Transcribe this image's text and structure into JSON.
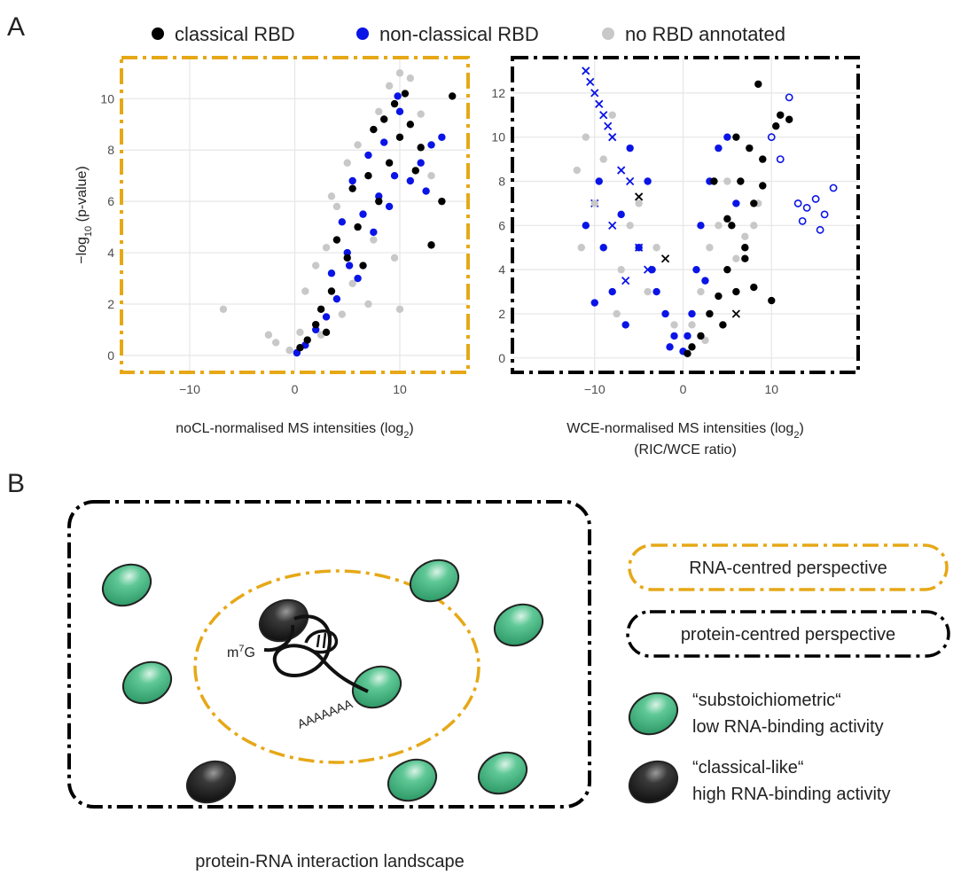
{
  "panel_labels": [
    "A",
    "B"
  ],
  "chart_data": [
    {
      "type": "scatter",
      "frame_color": "#e6a817",
      "grid": true,
      "xlim": [
        -16.5,
        16.5
      ],
      "ylim": [
        -0.66,
        11.6
      ],
      "xticks": [
        {
          "value": -10,
          "label": "−10"
        },
        0,
        10
      ],
      "yticks": [
        0,
        2,
        4,
        6,
        8,
        10
      ],
      "x_label": [
        "noCL-normalised MS intensities (log",
        "2",
        ")"
      ],
      "y_label": [
        "−log",
        "10",
        " (p-value)"
      ],
      "series": [
        {
          "name": "classical RBD",
          "color": "#000000",
          "marker": "dot",
          "x": [
            0.5,
            1.2,
            2,
            2.5,
            3.5,
            4,
            5,
            5.5,
            6,
            7,
            7.5,
            8,
            8.5,
            9,
            9.5,
            10,
            10.5,
            11,
            12,
            13,
            14,
            15,
            11.5,
            6.5,
            3
          ],
          "values": [
            0.3,
            0.6,
            1.2,
            1.8,
            2.5,
            4.5,
            3.8,
            6.5,
            5,
            7,
            8.8,
            6,
            9.2,
            7.5,
            9.8,
            8.5,
            10.2,
            9,
            8.1,
            4.3,
            6.0,
            10.1,
            7.2,
            3.5,
            0.9
          ]
        },
        {
          "name": "non-classical RBD",
          "color": "#0a14e6",
          "marker": "dot",
          "x": [
            0.2,
            1,
            2,
            3,
            3.5,
            4,
            4.5,
            5,
            5.5,
            6,
            6.5,
            7,
            7.5,
            8,
            8.5,
            9,
            9.5,
            10,
            11,
            12,
            13,
            14,
            5.2,
            9.8,
            12.5
          ],
          "values": [
            0.1,
            0.4,
            1,
            1.5,
            3.2,
            2.2,
            5.2,
            4,
            6.8,
            3,
            5.5,
            7.8,
            4.8,
            6.2,
            8.3,
            5.8,
            7,
            9.5,
            6.8,
            7.5,
            8.2,
            8.5,
            3.5,
            10.1,
            6.4
          ]
        },
        {
          "name": "no RBD annotated",
          "color": "#c8c8c8",
          "marker": "dot",
          "x": [
            -6.8,
            -2.5,
            -1.8,
            -0.5,
            0.5,
            1,
            2,
            2.5,
            3,
            4,
            4.5,
            5,
            6,
            7,
            8,
            9,
            10,
            11,
            12,
            13,
            3.5,
            5.5,
            7.5,
            9.5,
            10
          ],
          "values": [
            1.8,
            0.8,
            0.5,
            0.2,
            0.9,
            2.5,
            3.5,
            0.8,
            4.2,
            5.8,
            1.6,
            7.5,
            8.2,
            2,
            9.5,
            10.5,
            11,
            10.8,
            9.4,
            7,
            6.2,
            2.8,
            4.5,
            3.8,
            1.8
          ]
        }
      ]
    },
    {
      "type": "scatter",
      "frame_color": "#000000",
      "grid": true,
      "xlim": [
        -19.3,
        19.8
      ],
      "ylim": [
        -0.65,
        13.6
      ],
      "xticks": [
        {
          "value": -10,
          "label": "−10"
        },
        0,
        10
      ],
      "yticks": [
        0,
        2,
        4,
        6,
        8,
        10,
        12
      ],
      "x_label": [
        "WCE-normalised MS intensities (log",
        "2",
        ")"
      ],
      "x_label_line2": "(RIC/WCE ratio)",
      "series": [
        {
          "color": "#000000",
          "marker": "dot",
          "x": [
            0.5,
            1,
            2,
            3,
            4,
            5,
            5.5,
            6,
            6.5,
            7,
            7.5,
            8,
            8.5,
            9,
            10,
            11,
            12,
            3.5,
            5,
            7,
            9,
            10.5,
            6,
            4.5,
            8
          ],
          "values": [
            0.2,
            0.5,
            1,
            2,
            2.8,
            4,
            6,
            3,
            8,
            5,
            9.5,
            7,
            12.4,
            9,
            2.6,
            11,
            10.8,
            8,
            6.3,
            4.5,
            7.8,
            10.5,
            10,
            1.5,
            3.2
          ]
        },
        {
          "color": "#0a14e6",
          "marker": "dot",
          "x": [
            -11,
            -10,
            -9,
            -8,
            -7,
            -6,
            -5,
            -4,
            -3,
            -2,
            -1,
            0,
            0.5,
            1,
            1.5,
            2,
            2.5,
            3,
            4,
            5,
            6,
            -9.5,
            -6.5,
            -3.5,
            -1.5
          ],
          "values": [
            6,
            2.5,
            5,
            3,
            6.5,
            9.5,
            5,
            8,
            3,
            2,
            1,
            0.3,
            1,
            2,
            4,
            6,
            3.5,
            8,
            9.5,
            10,
            7,
            8,
            1.5,
            4,
            0.5
          ]
        },
        {
          "color": "#c8c8c8",
          "marker": "dot",
          "x": [
            -12,
            -11,
            -10,
            -9,
            -8,
            -7,
            -6,
            -5,
            -4,
            -3,
            -2,
            -1,
            1,
            2,
            3,
            4,
            5,
            6,
            7,
            8,
            9,
            -11.5,
            -7.5,
            2.5,
            8.5
          ],
          "values": [
            8.5,
            10,
            7,
            9,
            11,
            4,
            6,
            7,
            3,
            5,
            2,
            1.5,
            1.5,
            3,
            5,
            6,
            8,
            4.5,
            5.5,
            6,
            9,
            5,
            2,
            0.8,
            7
          ]
        },
        {
          "color": "#0a14e6",
          "marker": "cross",
          "x": [
            -11,
            -10.5,
            -10,
            -9.5,
            -9,
            -8.5,
            -8,
            -7,
            -6,
            -5,
            -4,
            -10,
            -8,
            -6.5
          ],
          "values": [
            13,
            12.5,
            12,
            11.5,
            11,
            10.5,
            10,
            8.5,
            8,
            5,
            4,
            7,
            6,
            3.5
          ]
        },
        {
          "color": "#0a14e6",
          "marker": "open",
          "x": [
            10,
            11,
            12,
            13,
            14,
            15,
            16,
            17,
            13.5,
            15.5
          ],
          "values": [
            10,
            9,
            11.8,
            7,
            6.8,
            7.2,
            6.5,
            7.7,
            6.2,
            5.8
          ]
        },
        {
          "color": "#000000",
          "marker": "cross",
          "x": [
            -2,
            -5,
            6
          ],
          "values": [
            4.5,
            7.3,
            2
          ]
        }
      ]
    }
  ],
  "diagram": {
    "cap": [
      "m",
      "7",
      "G"
    ],
    "poly_a": "AAAAAAA",
    "caption": "protein-RNA interaction landscape",
    "perspectives": [
      "RNA-centred perspective",
      "protein-centred perspective"
    ],
    "proteins": [
      {
        "line1": "“substoichiometric“",
        "line2": "low RNA-binding activity"
      },
      {
        "line1": "“classical-like“",
        "line2": "high RNA-binding activity"
      }
    ]
  }
}
